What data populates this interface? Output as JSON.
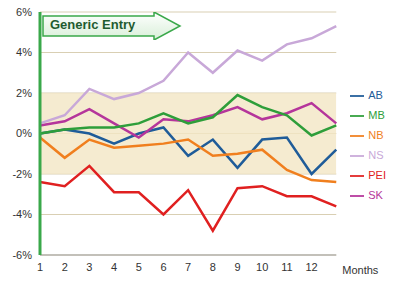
{
  "chart_data": {
    "type": "line",
    "annotation": "Generic Entry",
    "x_label": "Months",
    "categories": [
      "1",
      "2",
      "3",
      "4",
      "5",
      "6",
      "7",
      "8",
      "9",
      "10",
      "11",
      "12",
      null
    ],
    "series": [
      {
        "name": "AB",
        "color": "#1f5c99",
        "values": [
          0.0,
          0.2,
          0.0,
          -0.5,
          0.0,
          0.3,
          -1.1,
          -0.3,
          -1.7,
          -0.3,
          -0.2,
          -2.0,
          -0.8
        ]
      },
      {
        "name": "SK",
        "color": "#b5359b",
        "values": [
          0.4,
          0.6,
          1.2,
          0.5,
          -0.2,
          0.7,
          0.6,
          0.9,
          1.3,
          0.7,
          1.0,
          1.5,
          0.5
        ]
      },
      {
        "name": "MB",
        "color": "#2e9e3a",
        "values": [
          0.0,
          0.2,
          0.3,
          0.3,
          0.5,
          1.0,
          0.5,
          0.8,
          1.9,
          1.3,
          0.9,
          -0.1,
          0.4
        ]
      },
      {
        "name": "NB",
        "color": "#f07f1e",
        "values": [
          -0.2,
          -1.2,
          -0.3,
          -0.7,
          -0.6,
          -0.5,
          -0.3,
          -1.1,
          -1.0,
          -0.8,
          -1.8,
          -2.3,
          -2.4
        ]
      },
      {
        "name": "NS",
        "color": "#c8a8d8",
        "values": [
          0.5,
          0.9,
          2.2,
          1.7,
          2.0,
          2.6,
          4.0,
          3.0,
          4.1,
          3.6,
          4.4,
          4.7,
          5.3
        ]
      },
      {
        "name": "PEI",
        "color": "#e02020",
        "values": [
          -2.4,
          -2.6,
          -1.6,
          -2.9,
          -2.9,
          -4.0,
          -2.8,
          -4.8,
          -2.7,
          -2.6,
          -3.1,
          -3.1,
          -3.6
        ]
      }
    ],
    "ylim": [
      -6,
      6
    ],
    "yticks": [
      {
        "value": -6,
        "label": "-6%"
      },
      {
        "value": -4,
        "label": "-4%"
      },
      {
        "value": -2,
        "label": "-2%"
      },
      {
        "value": 0,
        "label": "0%"
      },
      {
        "value": 2,
        "label": "2%"
      },
      {
        "value": 4,
        "label": "4%"
      },
      {
        "value": 6,
        "label": "6%"
      }
    ],
    "band": [
      -2,
      2
    ],
    "grid": true,
    "legend": "right"
  }
}
